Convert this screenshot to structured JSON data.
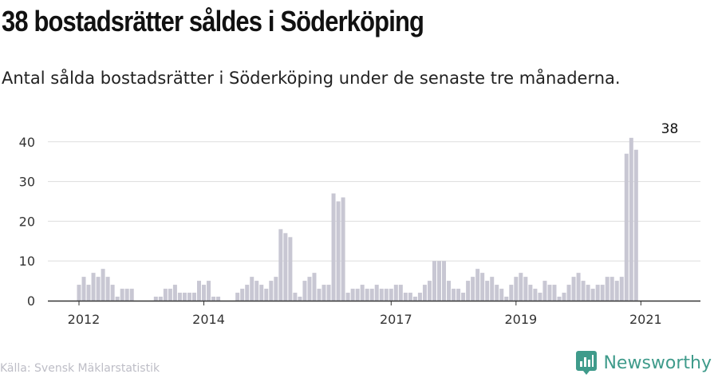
{
  "header": {
    "title": "38 bostadsrätter såldes i Söderköping",
    "subtitle": "Antal sålda bostadsrätter i Söderköping under de senaste tre månaderna."
  },
  "footer": {
    "source": "Källa: Svensk Mäklarstatistik",
    "brand": "Newsworthy"
  },
  "colors": {
    "bar": "#c8c7d3",
    "highlight": "#46a08e",
    "grid": "#dddddd",
    "axis": "#333333",
    "brand": "#3f9b8b"
  },
  "icons": {
    "brand_logo": "bar-chart-badge-icon"
  },
  "chart_data": {
    "type": "bar",
    "x_tick_labels": [
      "2012",
      "2014",
      "2017",
      "2019",
      "2021"
    ],
    "x_tick_index": [
      0,
      26,
      65,
      91,
      117
    ],
    "y_ticks": [
      0,
      10,
      20,
      30,
      40
    ],
    "ylim": [
      0,
      45
    ],
    "grid": true,
    "annotation": {
      "label": "38",
      "index": 123
    },
    "highlight_index": 123,
    "values": [
      4,
      6,
      4,
      7,
      6,
      8,
      6,
      4,
      1,
      3,
      3,
      3,
      0,
      0,
      0,
      0,
      1,
      1,
      3,
      3,
      4,
      2,
      2,
      2,
      2,
      5,
      4,
      5,
      1,
      1,
      0,
      0,
      0,
      2,
      3,
      4,
      6,
      5,
      4,
      3,
      5,
      6,
      18,
      17,
      16,
      2,
      1,
      5,
      6,
      7,
      3,
      4,
      4,
      27,
      25,
      26,
      2,
      3,
      3,
      4,
      3,
      3,
      4,
      3,
      3,
      3,
      4,
      4,
      2,
      2,
      1,
      2,
      4,
      5,
      10,
      10,
      10,
      5,
      3,
      3,
      2,
      5,
      6,
      8,
      7,
      5,
      6,
      4,
      3,
      1,
      4,
      6,
      7,
      6,
      4,
      3,
      2,
      5,
      4,
      4,
      1,
      2,
      4,
      6,
      7,
      5,
      4,
      3,
      4,
      4,
      6,
      6,
      5,
      6,
      37,
      41,
      38
    ]
  }
}
